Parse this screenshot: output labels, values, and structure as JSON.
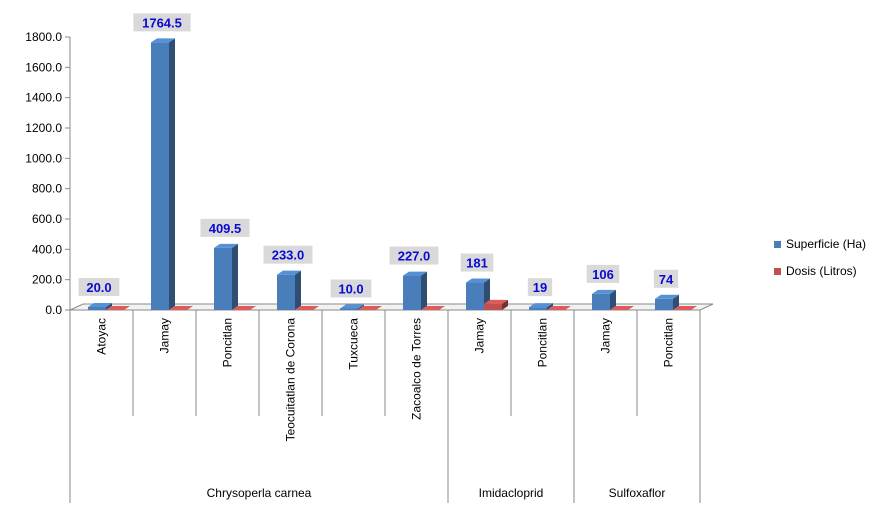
{
  "chart_data": {
    "type": "bar",
    "title": "",
    "xlabel": "",
    "ylabel": "",
    "ylim": [
      0,
      1800
    ],
    "yticks": [
      "0.0",
      "200.0",
      "400.0",
      "600.0",
      "800.0",
      "1000.0",
      "1200.0",
      "1400.0",
      "1600.0",
      "1800.0"
    ],
    "categories": [
      "Atoyac",
      "Jamay",
      "Poncitlan",
      "Teocuitatlan de Corona",
      "Tuxcueca",
      "Zacoalco de Torres",
      "Jamay",
      "Poncitlan",
      "Jamay",
      "Poncitlan"
    ],
    "groups": [
      {
        "name": "Chrysoperla carnea",
        "count": 6
      },
      {
        "name": "Imidacloprid",
        "count": 2
      },
      {
        "name": "Sulfoxaflor",
        "count": 2
      }
    ],
    "series": [
      {
        "name": "Superficie (Ha)",
        "color": "#4a7ebb",
        "values": [
          20.0,
          1764.5,
          409.5,
          233.0,
          10.0,
          227.0,
          181,
          19,
          106,
          74
        ],
        "labels": [
          "20.0",
          "1764.5",
          "409.5",
          "233.0",
          "10.0",
          "227.0",
          "181",
          "19",
          "106",
          "74"
        ]
      },
      {
        "name": "Dosis (Litros)",
        "color": "#c0504d",
        "values": [
          0,
          0,
          0,
          0,
          0,
          0,
          40,
          0,
          0,
          0
        ]
      }
    ],
    "legend_position": "right",
    "grid": false
  }
}
